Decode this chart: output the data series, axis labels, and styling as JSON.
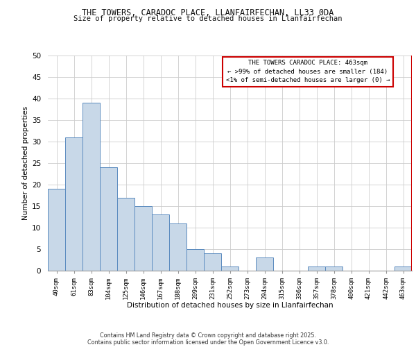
{
  "title1": "THE TOWERS, CARADOC PLACE, LLANFAIRFECHAN, LL33 0DA",
  "title2": "Size of property relative to detached houses in Llanfairfechan",
  "xlabel": "Distribution of detached houses by size in Llanfairfechan",
  "ylabel": "Number of detached properties",
  "categories": [
    "40sqm",
    "61sqm",
    "83sqm",
    "104sqm",
    "125sqm",
    "146sqm",
    "167sqm",
    "188sqm",
    "209sqm",
    "231sqm",
    "252sqm",
    "273sqm",
    "294sqm",
    "315sqm",
    "336sqm",
    "357sqm",
    "378sqm",
    "400sqm",
    "421sqm",
    "442sqm",
    "463sqm"
  ],
  "values": [
    19,
    31,
    39,
    24,
    17,
    15,
    13,
    11,
    5,
    4,
    1,
    0,
    3,
    0,
    0,
    1,
    1,
    0,
    0,
    0,
    1
  ],
  "bar_color": "#c8d8e8",
  "bar_edge_color": "#5a8abf",
  "highlight_index": 20,
  "highlight_line_color": "#cc0000",
  "annotation_text": "THE TOWERS CARADOC PLACE: 463sqm\n← >99% of detached houses are smaller (184)\n<1% of semi-detached houses are larger (0) →",
  "annotation_box_color": "#ffffff",
  "annotation_box_edge": "#cc0000",
  "ylim": [
    0,
    50
  ],
  "yticks": [
    0,
    5,
    10,
    15,
    20,
    25,
    30,
    35,
    40,
    45,
    50
  ],
  "footer1": "Contains HM Land Registry data © Crown copyright and database right 2025.",
  "footer2": "Contains public sector information licensed under the Open Government Licence v3.0.",
  "background_color": "#ffffff",
  "grid_color": "#cccccc"
}
